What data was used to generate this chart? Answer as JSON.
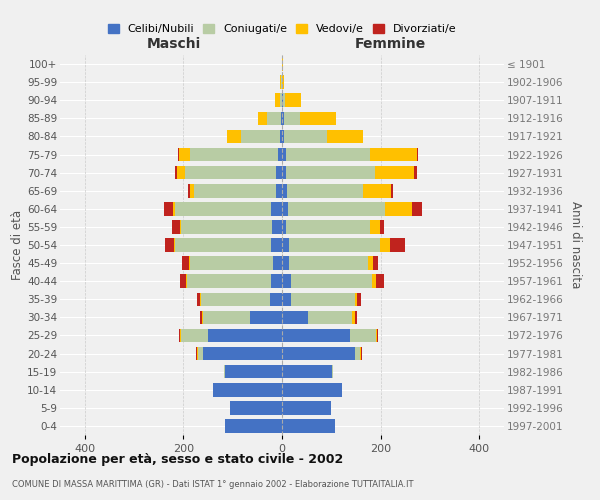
{
  "age_groups": [
    "0-4",
    "5-9",
    "10-14",
    "15-19",
    "20-24",
    "25-29",
    "30-34",
    "35-39",
    "40-44",
    "45-49",
    "50-54",
    "55-59",
    "60-64",
    "65-69",
    "70-74",
    "75-79",
    "80-84",
    "85-89",
    "90-94",
    "95-99",
    "100+"
  ],
  "birth_years": [
    "1997-2001",
    "1992-1996",
    "1987-1991",
    "1982-1986",
    "1977-1981",
    "1972-1976",
    "1967-1971",
    "1962-1966",
    "1957-1961",
    "1952-1956",
    "1947-1951",
    "1942-1946",
    "1937-1941",
    "1932-1936",
    "1927-1931",
    "1922-1926",
    "1917-1921",
    "1912-1916",
    "1907-1911",
    "1902-1906",
    "≤ 1901"
  ],
  "males": {
    "celibi": [
      115,
      105,
      140,
      115,
      160,
      150,
      65,
      25,
      22,
      18,
      22,
      20,
      22,
      13,
      12,
      8,
      5,
      2,
      0,
      0,
      0
    ],
    "coniugati": [
      0,
      0,
      0,
      2,
      10,
      55,
      95,
      140,
      170,
      168,
      195,
      185,
      195,
      165,
      185,
      178,
      78,
      28,
      5,
      2,
      0
    ],
    "vedovi": [
      0,
      0,
      0,
      0,
      2,
      2,
      2,
      2,
      2,
      2,
      2,
      2,
      4,
      8,
      15,
      22,
      28,
      18,
      10,
      2,
      0
    ],
    "divorziati": [
      0,
      0,
      0,
      0,
      2,
      2,
      5,
      5,
      12,
      14,
      18,
      16,
      18,
      5,
      5,
      2,
      0,
      0,
      0,
      0,
      0
    ]
  },
  "females": {
    "celibi": [
      108,
      100,
      122,
      102,
      148,
      138,
      52,
      18,
      18,
      14,
      14,
      8,
      13,
      10,
      8,
      8,
      4,
      4,
      2,
      0,
      0
    ],
    "coniugati": [
      0,
      0,
      0,
      2,
      10,
      52,
      90,
      130,
      165,
      160,
      185,
      170,
      195,
      155,
      180,
      170,
      88,
      33,
      5,
      0,
      0
    ],
    "vedovi": [
      0,
      0,
      0,
      0,
      2,
      2,
      5,
      5,
      8,
      10,
      20,
      20,
      55,
      55,
      80,
      95,
      72,
      72,
      32,
      5,
      2
    ],
    "divorziati": [
      0,
      0,
      0,
      0,
      2,
      2,
      5,
      8,
      15,
      10,
      30,
      8,
      20,
      5,
      5,
      2,
      0,
      0,
      0,
      0,
      0
    ]
  },
  "colors": {
    "celibi": "#4472c4",
    "coniugati": "#b8cca4",
    "vedovi": "#ffc000",
    "divorziati": "#c0231e"
  },
  "xlim": 450,
  "xlabel_ticks": [
    -400,
    -200,
    0,
    200,
    400
  ],
  "xlabel_labels": [
    "400",
    "200",
    "0",
    "200",
    "400"
  ],
  "title": "Popolazione per età, sesso e stato civile - 2002",
  "subtitle": "COMUNE DI MASSA MARITTIMA (GR) - Dati ISTAT 1° gennaio 2002 - Elaborazione TUTTAITALIA.IT",
  "maschi_label": "Maschi",
  "femmine_label": "Femmine",
  "ylabel_left": "Fasce di età",
  "ylabel_right": "Anni di nascita",
  "legend_labels": [
    "Celibi/Nubili",
    "Coniugati/e",
    "Vedovi/e",
    "Divorziati/e"
  ],
  "bg_color": "#f0f0f0",
  "plot_bg": "#f0f0f0"
}
